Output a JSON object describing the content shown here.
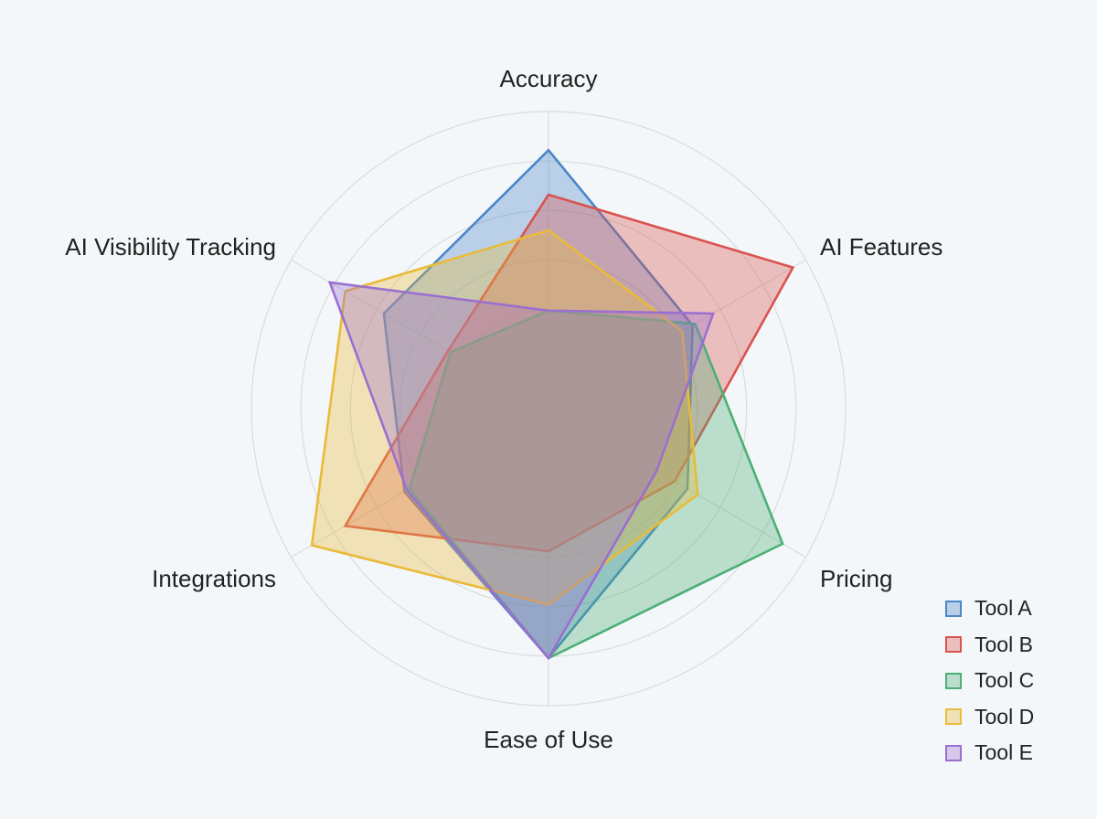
{
  "chart_data": {
    "type": "radar",
    "title": "",
    "axes": [
      "Accuracy",
      "AI Features",
      "Pricing",
      "Ease of Use",
      "Integrations",
      "AI Visibility Tracking"
    ],
    "range": [
      0,
      100
    ],
    "rings": 6,
    "grid": true,
    "legend_position": "bottom-right",
    "series": [
      {
        "name": "Tool A",
        "color": "#4a86c8",
        "values": [
          87,
          56,
          54,
          84,
          56,
          64
        ]
      },
      {
        "name": "Tool B",
        "color": "#d9534f",
        "values": [
          72,
          95,
          49,
          48,
          79,
          39
        ]
      },
      {
        "name": "Tool C",
        "color": "#4caf76",
        "values": [
          33,
          57,
          91,
          84,
          54,
          38
        ]
      },
      {
        "name": "Tool D",
        "color": "#e8bb3a",
        "values": [
          60,
          52,
          58,
          66,
          92,
          79
        ]
      },
      {
        "name": "Tool E",
        "color": "#9b6fd0",
        "values": [
          33,
          64,
          42,
          84,
          55,
          85
        ]
      }
    ]
  }
}
